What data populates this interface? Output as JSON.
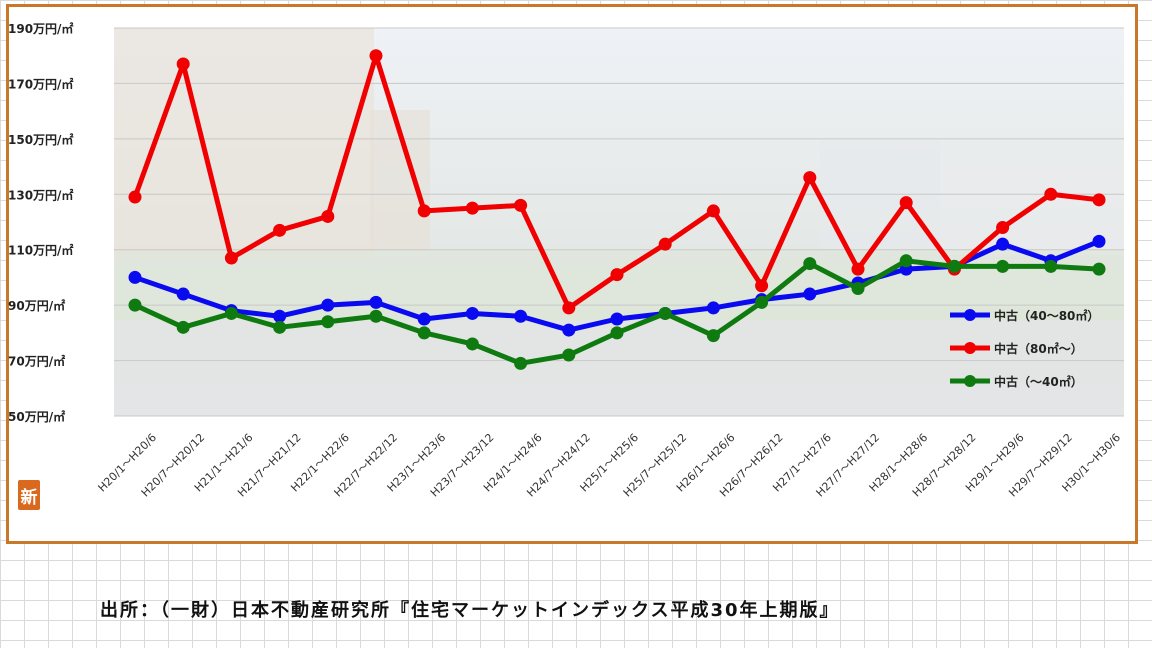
{
  "source_text": "出所：（一財）日本不動産研究所『住宅マーケットインデックス平成30年上期版』",
  "badge_text": "新",
  "chart_data": {
    "type": "line",
    "ylim": [
      50,
      190
    ],
    "yticks": [
      50,
      70,
      90,
      110,
      130,
      150,
      170,
      190
    ],
    "ytick_labels": [
      "50万円/㎡",
      "70万円/㎡",
      "90万円/㎡",
      "110万円/㎡",
      "130万円/㎡",
      "150万円/㎡",
      "170万円/㎡",
      "190万円/㎡"
    ],
    "categories": [
      "H20/1～H20/6",
      "H20/7～H20/12",
      "H21/1～H21/6",
      "H21/7～H21/12",
      "H22/1～H22/6",
      "H22/7～H22/12",
      "H23/1～H23/6",
      "H23/7～H23/12",
      "H24/1～H24/6",
      "H24/7～H24/12",
      "H25/1～H25/6",
      "H25/7～H25/12",
      "H26/1～H26/6",
      "H26/7～H26/12",
      "H27/1～H27/6",
      "H27/7～H27/12",
      "H28/1～H28/6",
      "H28/7～H28/12",
      "H29/1～H29/6",
      "H29/7～H29/12",
      "H30/1～H30/6"
    ],
    "series": [
      {
        "name": "中古（40～80㎡）",
        "color": "#0a0af0",
        "values": [
          100,
          94,
          88,
          86,
          90,
          91,
          85,
          87,
          86,
          81,
          85,
          87,
          89,
          92,
          94,
          98,
          103,
          104,
          112,
          106,
          113
        ]
      },
      {
        "name": "中古（80㎡～）",
        "color": "#f00000",
        "values": [
          129,
          177,
          107,
          117,
          122,
          180,
          124,
          125,
          126,
          89,
          101,
          112,
          124,
          97,
          136,
          103,
          127,
          103,
          118,
          130,
          128
        ]
      },
      {
        "name": "中古（～40㎡）",
        "color": "#0f7a0f",
        "values": [
          90,
          82,
          87,
          82,
          84,
          86,
          80,
          76,
          69,
          72,
          80,
          87,
          79,
          91,
          105,
          96,
          106,
          104,
          104,
          104,
          103
        ]
      }
    ],
    "legend_position": "right",
    "grid": true
  }
}
